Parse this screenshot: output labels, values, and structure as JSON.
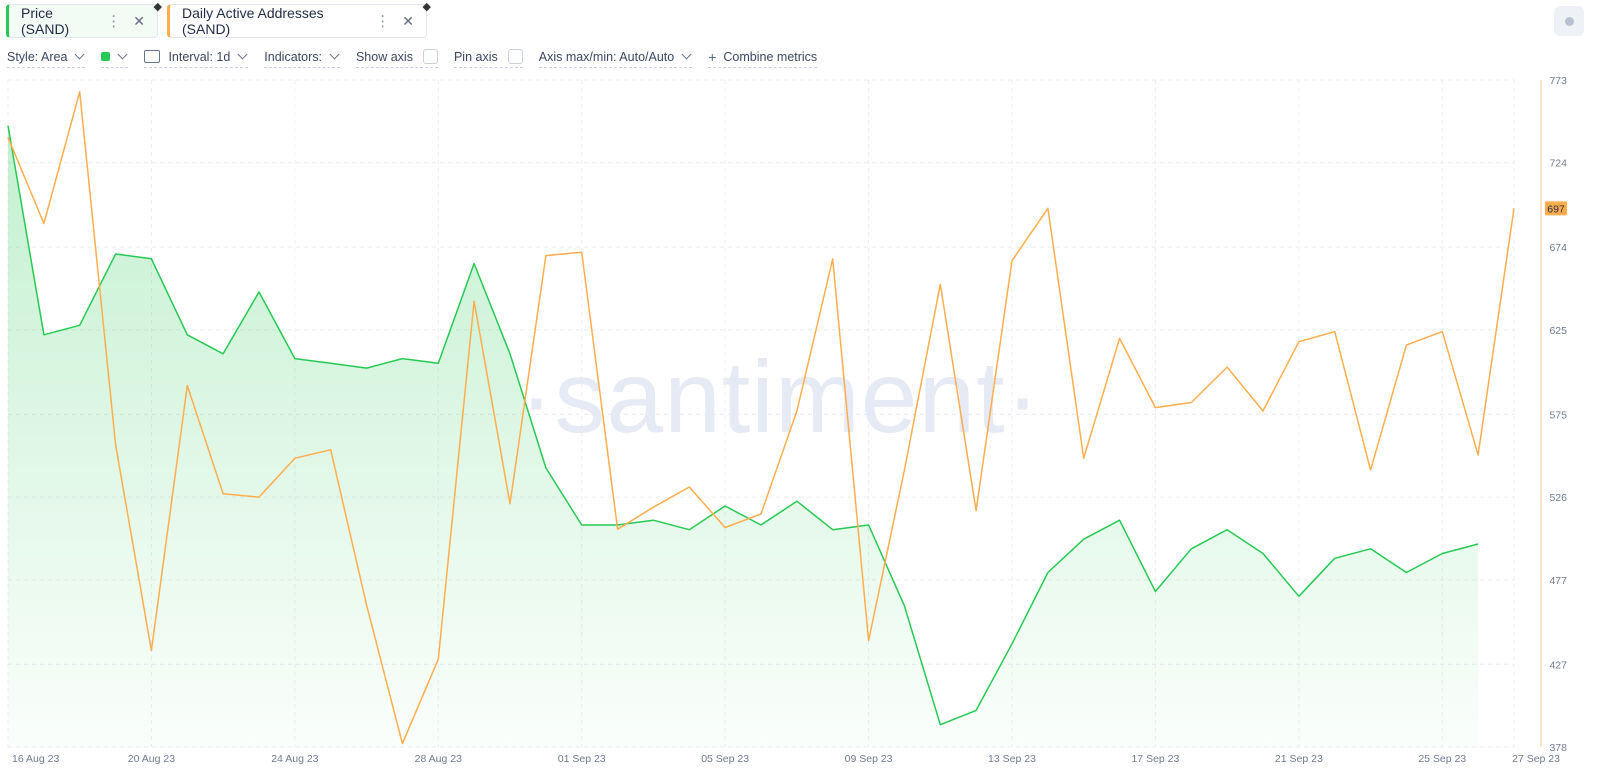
{
  "tabs": [
    {
      "label": "Price (SAND)",
      "color": "#26c953",
      "icon": "ethereum-icon"
    },
    {
      "label": "Daily Active Addresses (SAND)",
      "color": "#ffad4d",
      "icon": "ethereum-icon"
    }
  ],
  "toolbar": {
    "style": "Style: Area",
    "interval": "Interval: 1d",
    "indicators": "Indicators:",
    "show_axis": "Show axis",
    "pin_axis": "Pin axis",
    "axis_minmax": "Axis max/min: Auto/Auto",
    "combine": "Combine metrics"
  },
  "watermark": "·santiment·",
  "current_value_badge": "697",
  "chart_data": {
    "type": "line",
    "x": [
      "16 Aug 23",
      "17 Aug 23",
      "18 Aug 23",
      "19 Aug 23",
      "20 Aug 23",
      "21 Aug 23",
      "22 Aug 23",
      "23 Aug 23",
      "24 Aug 23",
      "25 Aug 23",
      "26 Aug 23",
      "27 Aug 23",
      "28 Aug 23",
      "29 Aug 23",
      "30 Aug 23",
      "31 Aug 23",
      "01 Sep 23",
      "02 Sep 23",
      "03 Sep 23",
      "04 Sep 23",
      "05 Sep 23",
      "06 Sep 23",
      "07 Sep 23",
      "08 Sep 23",
      "09 Sep 23",
      "10 Sep 23",
      "11 Sep 23",
      "12 Sep 23",
      "13 Sep 23",
      "14 Sep 23",
      "15 Sep 23",
      "16 Sep 23",
      "17 Sep 23",
      "18 Sep 23",
      "19 Sep 23",
      "20 Sep 23",
      "21 Sep 23",
      "22 Sep 23",
      "23 Sep 23",
      "24 Sep 23",
      "25 Sep 23",
      "26 Sep 23",
      "27 Sep 23"
    ],
    "x_tick_labels": [
      "16 Aug 23",
      "20 Aug 23",
      "24 Aug 23",
      "28 Aug 23",
      "01 Sep 23",
      "05 Sep 23",
      "09 Sep 23",
      "13 Sep 23",
      "17 Sep 23",
      "21 Sep 23",
      "25 Sep 23",
      "27 Sep 23"
    ],
    "right_axis": {
      "ticks": [
        773,
        724,
        674,
        625,
        575,
        526,
        477,
        427,
        378
      ],
      "ylim": [
        378,
        773
      ]
    },
    "series": [
      {
        "name": "Price (SAND)",
        "style": "area",
        "color": "#26c953",
        "values": [
          0.4,
          0.356,
          0.358,
          0.373,
          0.372,
          0.356,
          0.352,
          0.365,
          0.351,
          0.35,
          0.349,
          0.351,
          0.35,
          0.371,
          0.352,
          0.328,
          0.316,
          0.316,
          0.317,
          0.315,
          0.32,
          0.316,
          0.321,
          0.315,
          0.316,
          0.299,
          0.274,
          0.277,
          0.291,
          0.306,
          0.313,
          0.317,
          0.302,
          0.311,
          0.315,
          0.31,
          0.301,
          0.309,
          0.311,
          0.306,
          0.31,
          0.312,
          null
        ],
        "ylim": [
          0.2693,
          0.4096
        ]
      },
      {
        "name": "Daily Active Addresses (SAND)",
        "style": "line",
        "color": "#ffad4d",
        "values": [
          739,
          688,
          766,
          557,
          435,
          592,
          528,
          526,
          549,
          554,
          462,
          380,
          430,
          642,
          522,
          669,
          671,
          507,
          520,
          532,
          508,
          516,
          577,
          667,
          441,
          542,
          652,
          518,
          666,
          697,
          549,
          620,
          579,
          582,
          603,
          577,
          618,
          624,
          542,
          616,
          624,
          551,
          697
        ],
        "ylim": [
          378,
          773
        ]
      }
    ]
  }
}
